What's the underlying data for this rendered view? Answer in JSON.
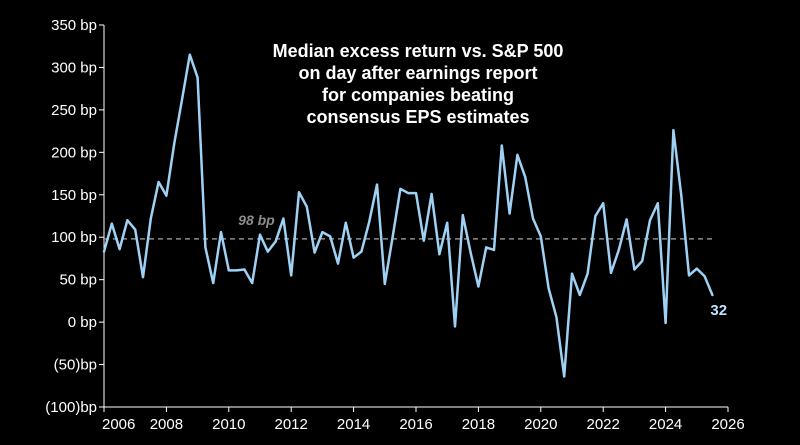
{
  "chart_data": {
    "type": "line",
    "title_lines": [
      "Median excess return vs. S&P 500",
      "on day after earnings report",
      "for companies beating",
      "consensus EPS estimates"
    ],
    "xlabel": "",
    "ylabel": "",
    "xlim": [
      2006,
      2026
    ],
    "ylim": [
      -100,
      350
    ],
    "x_ticks": [
      2006,
      2008,
      2010,
      2012,
      2014,
      2016,
      2018,
      2020,
      2022,
      2024,
      2026
    ],
    "x_tick_labels": [
      "2006",
      "2008",
      "2010",
      "2012",
      "2014",
      "2016",
      "2018",
      "2020",
      "2022",
      "2024",
      "2026"
    ],
    "y_ticks": [
      350,
      300,
      250,
      200,
      150,
      100,
      50,
      0,
      -50,
      -100
    ],
    "y_tick_labels": [
      "350 bp",
      "300 bp",
      "250 bp",
      "200 bp",
      "150 bp",
      "100 bp",
      "50 bp",
      "0 bp",
      "(50)bp",
      "(100)bp"
    ],
    "reference_line": {
      "value": 98,
      "label": "98 bp",
      "style": "dashed"
    },
    "end_label": "32",
    "series": [
      {
        "name": "Median excess return",
        "color": "#9fd1f5",
        "points": [
          [
            2006.0,
            83
          ],
          [
            2006.25,
            116
          ],
          [
            2006.5,
            86
          ],
          [
            2006.75,
            120
          ],
          [
            2007.0,
            109
          ],
          [
            2007.25,
            53
          ],
          [
            2007.5,
            122
          ],
          [
            2007.75,
            165
          ],
          [
            2008.0,
            149
          ],
          [
            2008.25,
            210
          ],
          [
            2008.5,
            262
          ],
          [
            2008.75,
            315
          ],
          [
            2009.0,
            288
          ],
          [
            2009.25,
            88
          ],
          [
            2009.5,
            46
          ],
          [
            2009.75,
            106
          ],
          [
            2010.0,
            61
          ],
          [
            2010.25,
            61
          ],
          [
            2010.5,
            62
          ],
          [
            2010.75,
            46
          ],
          [
            2011.0,
            103
          ],
          [
            2011.25,
            83
          ],
          [
            2011.5,
            95
          ],
          [
            2011.75,
            122
          ],
          [
            2012.0,
            55
          ],
          [
            2012.25,
            153
          ],
          [
            2012.5,
            136
          ],
          [
            2012.75,
            82
          ],
          [
            2013.0,
            106
          ],
          [
            2013.25,
            101
          ],
          [
            2013.5,
            69
          ],
          [
            2013.75,
            117
          ],
          [
            2014.0,
            76
          ],
          [
            2014.25,
            83
          ],
          [
            2014.5,
            118
          ],
          [
            2014.75,
            162
          ],
          [
            2015.0,
            45
          ],
          [
            2015.25,
            100
          ],
          [
            2015.5,
            157
          ],
          [
            2015.75,
            152
          ],
          [
            2016.0,
            152
          ],
          [
            2016.25,
            96
          ],
          [
            2016.5,
            151
          ],
          [
            2016.75,
            80
          ],
          [
            2017.0,
            117
          ],
          [
            2017.25,
            -5
          ],
          [
            2017.5,
            126
          ],
          [
            2017.75,
            82
          ],
          [
            2018.0,
            42
          ],
          [
            2018.25,
            88
          ],
          [
            2018.5,
            85
          ],
          [
            2018.75,
            208
          ],
          [
            2019.0,
            128
          ],
          [
            2019.25,
            197
          ],
          [
            2019.5,
            171
          ],
          [
            2019.75,
            122
          ],
          [
            2020.0,
            101
          ],
          [
            2020.25,
            40
          ],
          [
            2020.5,
            6
          ],
          [
            2020.75,
            -64
          ],
          [
            2021.0,
            57
          ],
          [
            2021.25,
            32
          ],
          [
            2021.5,
            57
          ],
          [
            2021.75,
            125
          ],
          [
            2022.0,
            140
          ],
          [
            2022.25,
            58
          ],
          [
            2022.5,
            85
          ],
          [
            2022.75,
            121
          ],
          [
            2023.0,
            62
          ],
          [
            2023.25,
            72
          ],
          [
            2023.5,
            120
          ],
          [
            2023.75,
            140
          ],
          [
            2024.0,
            -1
          ],
          [
            2024.25,
            226
          ],
          [
            2024.5,
            150
          ],
          [
            2024.75,
            55
          ],
          [
            2025.0,
            63
          ],
          [
            2025.25,
            54
          ],
          [
            2025.5,
            32
          ]
        ]
      }
    ]
  },
  "colors": {
    "background": "#000000",
    "axis": "#ffffff",
    "text": "#ffffff",
    "line": "#9fd1f5",
    "reference": "#8c8c8c",
    "end_label": "#bfe3fb"
  }
}
